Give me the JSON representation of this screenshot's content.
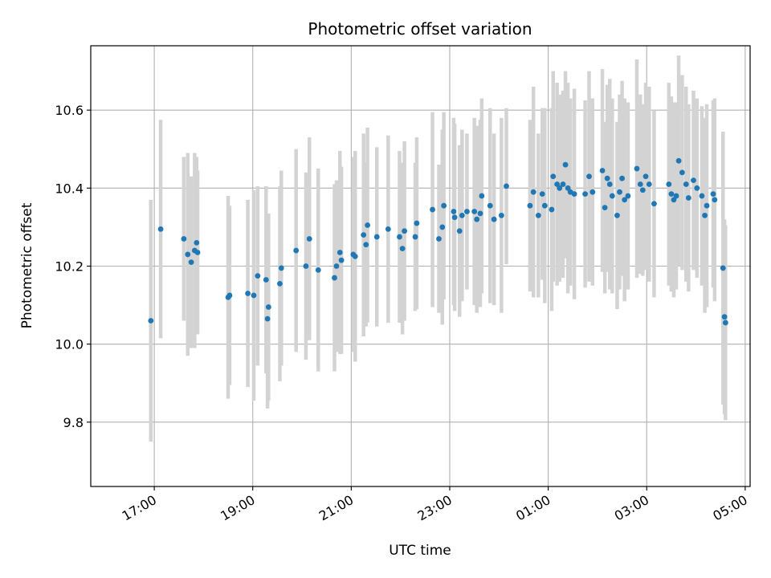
{
  "chart_data": {
    "type": "scatter",
    "title": "Photometric offset variation",
    "xlabel": "UTC time",
    "ylabel": "Photometric offset",
    "x_unit": "hours (UTC, continuing past midnight)",
    "xlim": [
      15.71,
      29.1
    ],
    "ylim": [
      9.635,
      10.765
    ],
    "x_ticks": [
      {
        "value": 17,
        "label": "17:00"
      },
      {
        "value": 19,
        "label": "19:00"
      },
      {
        "value": 21,
        "label": "21:00"
      },
      {
        "value": 23,
        "label": "23:00"
      },
      {
        "value": 25,
        "label": "01:00"
      },
      {
        "value": 27,
        "label": "03:00"
      },
      {
        "value": 29,
        "label": "05:00"
      }
    ],
    "y_ticks": [
      {
        "value": 9.8,
        "label": "9.8"
      },
      {
        "value": 10.0,
        "label": "10.0"
      },
      {
        "value": 10.2,
        "label": "10.2"
      },
      {
        "value": 10.4,
        "label": "10.4"
      },
      {
        "value": 10.6,
        "label": "10.6"
      }
    ],
    "grid": true,
    "colors": {
      "point": "#1f77b4",
      "errorbar": "#d3d3d3",
      "grid": "#b0b0b0",
      "axes": "#000000"
    },
    "series": [
      {
        "points": [
          [
            16.93,
            10.06,
            0.31
          ],
          [
            17.13,
            10.295,
            0.28
          ],
          [
            17.6,
            10.27,
            0.21
          ],
          [
            17.68,
            10.23,
            0.26
          ],
          [
            17.75,
            10.21,
            0.22
          ],
          [
            17.82,
            10.24,
            0.25
          ],
          [
            17.86,
            10.26,
            0.22
          ],
          [
            17.88,
            10.235,
            0.21
          ],
          [
            18.5,
            10.12,
            0.26
          ],
          [
            18.53,
            10.125,
            0.23
          ],
          [
            18.9,
            10.13,
            0.24
          ],
          [
            19.02,
            10.125,
            0.27
          ],
          [
            19.1,
            10.175,
            0.23
          ],
          [
            19.27,
            10.165,
            0.24
          ],
          [
            19.3,
            10.065,
            0.23
          ],
          [
            19.32,
            10.095,
            0.24
          ],
          [
            19.55,
            10.155,
            0.25
          ],
          [
            19.58,
            10.195,
            0.25
          ],
          [
            19.88,
            10.24,
            0.26
          ],
          [
            20.08,
            10.2,
            0.24
          ],
          [
            20.15,
            10.27,
            0.26
          ],
          [
            20.33,
            10.19,
            0.26
          ],
          [
            20.66,
            10.17,
            0.24
          ],
          [
            20.7,
            10.2,
            0.22
          ],
          [
            20.77,
            10.235,
            0.26
          ],
          [
            20.8,
            10.215,
            0.24
          ],
          [
            21.04,
            10.23,
            0.25
          ],
          [
            21.08,
            10.225,
            0.27
          ],
          [
            21.25,
            10.28,
            0.26
          ],
          [
            21.3,
            10.255,
            0.21
          ],
          [
            21.33,
            10.305,
            0.25
          ],
          [
            21.52,
            10.275,
            0.23
          ],
          [
            21.75,
            10.295,
            0.24
          ],
          [
            21.98,
            10.275,
            0.22
          ],
          [
            22.04,
            10.245,
            0.22
          ],
          [
            22.08,
            10.29,
            0.23
          ],
          [
            22.3,
            10.275,
            0.19
          ],
          [
            22.33,
            10.31,
            0.22
          ],
          [
            22.65,
            10.345,
            0.25
          ],
          [
            22.78,
            10.27,
            0.19
          ],
          [
            22.85,
            10.3,
            0.25
          ],
          [
            22.88,
            10.355,
            0.24
          ],
          [
            23.08,
            10.34,
            0.24
          ],
          [
            23.1,
            10.325,
            0.24
          ],
          [
            23.2,
            10.29,
            0.22
          ],
          [
            23.25,
            10.33,
            0.22
          ],
          [
            23.35,
            10.34,
            0.2
          ],
          [
            23.5,
            10.34,
            0.24
          ],
          [
            23.55,
            10.32,
            0.24
          ],
          [
            23.62,
            10.335,
            0.24
          ],
          [
            23.65,
            10.38,
            0.25
          ],
          [
            23.82,
            10.355,
            0.25
          ],
          [
            23.9,
            10.32,
            0.22
          ],
          [
            24.05,
            10.33,
            0.25
          ],
          [
            24.15,
            10.405,
            0.2
          ],
          [
            24.63,
            10.355,
            0.22
          ],
          [
            24.7,
            10.39,
            0.27
          ],
          [
            24.8,
            10.33,
            0.21
          ],
          [
            24.88,
            10.385,
            0.22
          ],
          [
            24.93,
            10.355,
            0.25
          ],
          [
            25.07,
            10.345,
            0.26
          ],
          [
            25.1,
            10.43,
            0.27
          ],
          [
            25.18,
            10.41,
            0.26
          ],
          [
            25.23,
            10.4,
            0.24
          ],
          [
            25.3,
            10.41,
            0.24
          ],
          [
            25.35,
            10.46,
            0.24
          ],
          [
            25.4,
            10.4,
            0.27
          ],
          [
            25.45,
            10.39,
            0.24
          ],
          [
            25.53,
            10.385,
            0.27
          ],
          [
            25.75,
            10.385,
            0.24
          ],
          [
            25.83,
            10.43,
            0.27
          ],
          [
            25.9,
            10.39,
            0.24
          ],
          [
            26.1,
            10.445,
            0.26
          ],
          [
            26.15,
            10.35,
            0.22
          ],
          [
            26.2,
            10.425,
            0.24
          ],
          [
            26.25,
            10.41,
            0.27
          ],
          [
            26.3,
            10.38,
            0.25
          ],
          [
            26.4,
            10.33,
            0.24
          ],
          [
            26.45,
            10.39,
            0.25
          ],
          [
            26.5,
            10.425,
            0.25
          ],
          [
            26.55,
            10.37,
            0.26
          ],
          [
            26.62,
            10.38,
            0.24
          ],
          [
            26.8,
            10.45,
            0.28
          ],
          [
            26.87,
            10.41,
            0.23
          ],
          [
            26.92,
            10.395,
            0.22
          ],
          [
            26.98,
            10.43,
            0.24
          ],
          [
            27.05,
            10.41,
            0.25
          ],
          [
            27.15,
            10.36,
            0.24
          ],
          [
            27.45,
            10.41,
            0.26
          ],
          [
            27.5,
            10.385,
            0.25
          ],
          [
            27.55,
            10.37,
            0.25
          ],
          [
            27.6,
            10.38,
            0.24
          ],
          [
            27.65,
            10.47,
            0.27
          ],
          [
            27.72,
            10.44,
            0.25
          ],
          [
            27.8,
            10.41,
            0.25
          ],
          [
            27.85,
            10.375,
            0.24
          ],
          [
            27.95,
            10.42,
            0.23
          ],
          [
            28.02,
            10.4,
            0.23
          ],
          [
            28.12,
            10.38,
            0.23
          ],
          [
            28.18,
            10.33,
            0.25
          ],
          [
            28.22,
            10.355,
            0.26
          ],
          [
            28.35,
            10.385,
            0.24
          ],
          [
            28.38,
            10.37,
            0.26
          ],
          [
            28.55,
            10.195,
            0.35
          ],
          [
            28.58,
            10.07,
            0.25
          ],
          [
            28.6,
            10.055,
            0.25
          ]
        ]
      }
    ]
  }
}
